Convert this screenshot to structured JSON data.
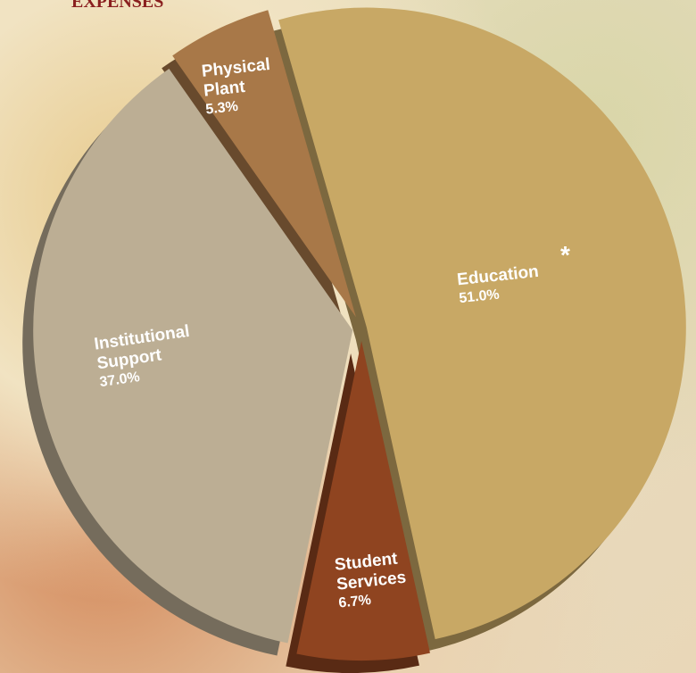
{
  "chart_data": {
    "type": "pie",
    "title": "EXPENSES",
    "categories": [
      "Education",
      "Student Services",
      "Institutional Support",
      "Physical Plant"
    ],
    "values": [
      51.0,
      6.7,
      37.0,
      5.3
    ],
    "value_labels": [
      "51.0%",
      "6.7%",
      "37.0%",
      "5.3%"
    ],
    "colors": [
      "#c8a865",
      "#8f4420",
      "#bcae94",
      "#a87848"
    ],
    "annotations": [
      "*"
    ]
  }
}
